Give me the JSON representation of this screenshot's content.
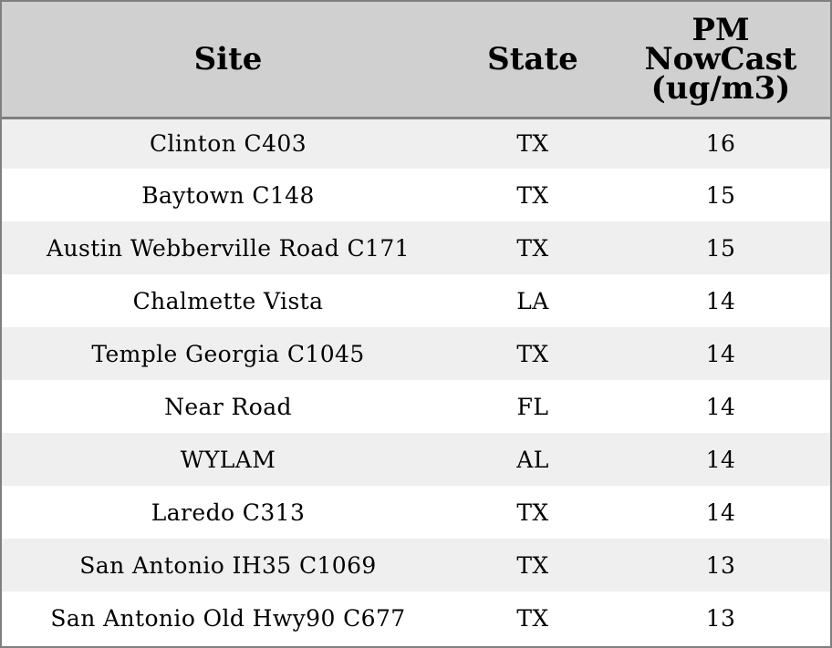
{
  "table": {
    "headers": {
      "site": "Site",
      "state": "State",
      "pm_line1": "PM",
      "pm_line2": "NowCast",
      "pm_line3": "(ug/m3)"
    },
    "rows": [
      {
        "site": "Clinton C403",
        "state": "TX",
        "pm": "16"
      },
      {
        "site": "Baytown C148",
        "state": "TX",
        "pm": "15"
      },
      {
        "site": "Austin Webberville Road C171",
        "state": "TX",
        "pm": "15"
      },
      {
        "site": "Chalmette Vista",
        "state": "LA",
        "pm": "14"
      },
      {
        "site": "Temple Georgia C1045",
        "state": "TX",
        "pm": "14"
      },
      {
        "site": "Near Road",
        "state": "FL",
        "pm": "14"
      },
      {
        "site": "WYLAM",
        "state": "AL",
        "pm": "14"
      },
      {
        "site": "Laredo C313",
        "state": "TX",
        "pm": "14"
      },
      {
        "site": "San Antonio IH35 C1069",
        "state": "TX",
        "pm": "13"
      },
      {
        "site": "San Antonio Old Hwy90 C677",
        "state": "TX",
        "pm": "13"
      }
    ]
  },
  "colors": {
    "header_bg": "#d0d0d0",
    "row_alt_bg": "#efefef",
    "row_bg": "#ffffff",
    "border": "#7f7f7f"
  }
}
